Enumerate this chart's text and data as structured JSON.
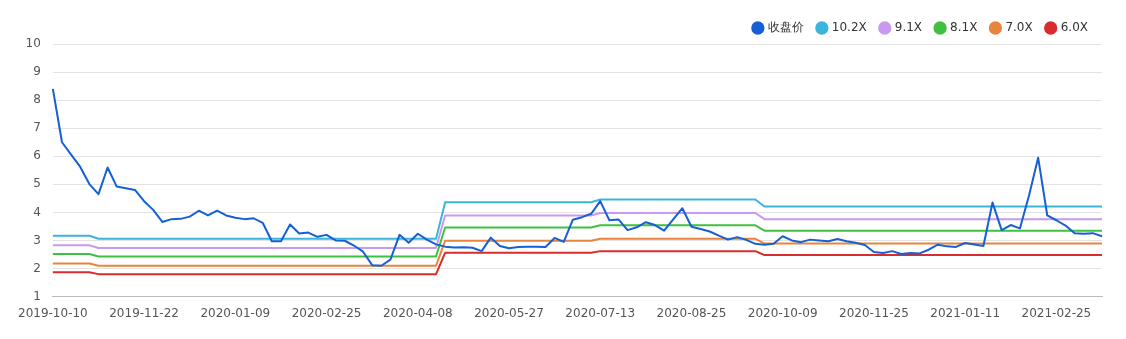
{
  "chart_data": {
    "type": "line",
    "legend": "top right",
    "grid": "y",
    "marker": "none",
    "line_style": "solid",
    "ylim": [
      1,
      10
    ],
    "yticks": [
      1,
      2,
      3,
      4,
      5,
      6,
      7,
      8,
      9,
      10
    ],
    "categories": [
      "2019-10-10",
      null,
      null,
      null,
      null,
      null,
      null,
      null,
      null,
      null,
      "2019-11-22",
      null,
      null,
      null,
      null,
      null,
      null,
      null,
      null,
      null,
      "2020-01-09",
      null,
      null,
      null,
      null,
      null,
      null,
      null,
      null,
      null,
      "2020-02-25",
      null,
      null,
      null,
      null,
      null,
      null,
      null,
      null,
      null,
      "2020-04-08",
      null,
      null,
      null,
      null,
      null,
      null,
      null,
      null,
      null,
      "2020-05-27",
      null,
      null,
      null,
      null,
      null,
      null,
      null,
      null,
      null,
      "2020-07-13",
      null,
      null,
      null,
      null,
      null,
      null,
      null,
      null,
      null,
      "2020-08-25",
      null,
      null,
      null,
      null,
      null,
      null,
      null,
      null,
      null,
      "2020-10-09",
      null,
      null,
      null,
      null,
      null,
      null,
      null,
      null,
      null,
      "2020-11-25",
      null,
      null,
      null,
      null,
      null,
      null,
      null,
      null,
      null,
      "2021-01-11",
      null,
      null,
      null,
      null,
      null,
      null,
      null,
      null,
      null,
      "2021-02-25",
      null,
      null,
      null,
      null,
      null
    ],
    "series": [
      {
        "name": "收盘价",
        "color": "#1560d4",
        "values": [
          8.4,
          6.5,
          6.06,
          5.62,
          5.01,
          4.65,
          5.6,
          4.92,
          4.86,
          4.8,
          4.4,
          4.09,
          3.66,
          3.76,
          3.77,
          3.85,
          4.06,
          3.89,
          4.06,
          3.89,
          3.81,
          3.76,
          3.79,
          3.63,
          2.97,
          2.97,
          3.57,
          3.25,
          3.28,
          3.13,
          3.2,
          3.0,
          2.99,
          2.82,
          2.6,
          2.12,
          2.1,
          2.32,
          3.2,
          2.92,
          3.24,
          3.03,
          2.86,
          2.78,
          2.75,
          2.76,
          2.74,
          2.62,
          3.1,
          2.8,
          2.72,
          2.77,
          2.78,
          2.78,
          2.77,
          3.09,
          2.95,
          3.74,
          3.83,
          3.95,
          4.4,
          3.72,
          3.75,
          3.37,
          3.47,
          3.65,
          3.55,
          3.35,
          3.75,
          4.15,
          3.49,
          3.41,
          3.32,
          3.17,
          3.03,
          3.12,
          3.02,
          2.88,
          2.85,
          2.88,
          3.15,
          3.0,
          2.94,
          3.03,
          3.0,
          2.97,
          3.05,
          2.97,
          2.92,
          2.84,
          2.59,
          2.55,
          2.62,
          2.52,
          2.55,
          2.54,
          2.67,
          2.85,
          2.79,
          2.77,
          2.91,
          2.86,
          2.8,
          4.35,
          3.37,
          3.55,
          3.43,
          4.6,
          5.95,
          3.89,
          3.72,
          3.53,
          3.26,
          3.24,
          3.26,
          3.15
        ]
      },
      {
        "name": "10.2X",
        "color": "#3bb5dc",
        "values": [
          3.17,
          3.17,
          3.17,
          3.17,
          3.17,
          3.06,
          3.06,
          3.06,
          3.06,
          3.06,
          3.06,
          3.06,
          3.06,
          3.06,
          3.06,
          3.06,
          3.06,
          3.06,
          3.06,
          3.06,
          3.06,
          3.06,
          3.06,
          3.06,
          3.06,
          3.06,
          3.06,
          3.06,
          3.06,
          3.06,
          3.06,
          3.06,
          3.06,
          3.06,
          3.06,
          3.06,
          3.06,
          3.06,
          3.06,
          3.06,
          3.06,
          3.06,
          3.06,
          4.36,
          4.36,
          4.36,
          4.36,
          4.36,
          4.36,
          4.36,
          4.36,
          4.36,
          4.36,
          4.36,
          4.36,
          4.36,
          4.36,
          4.36,
          4.36,
          4.36,
          4.46,
          4.46,
          4.46,
          4.46,
          4.46,
          4.46,
          4.46,
          4.46,
          4.46,
          4.46,
          4.46,
          4.46,
          4.46,
          4.46,
          4.46,
          4.46,
          4.46,
          4.46,
          4.21,
          4.21,
          4.21,
          4.21,
          4.21,
          4.21,
          4.21,
          4.21,
          4.21,
          4.21,
          4.21,
          4.21,
          4.21,
          4.21,
          4.21,
          4.21,
          4.21,
          4.21,
          4.21,
          4.21,
          4.21,
          4.21,
          4.21,
          4.21,
          4.21,
          4.21,
          4.21,
          4.21,
          4.21,
          4.21,
          4.21,
          4.21,
          4.21,
          4.21,
          4.21,
          4.21,
          4.21,
          4.21
        ]
      },
      {
        "name": "9.1X",
        "color": "#c79af0",
        "values": [
          2.83,
          2.83,
          2.83,
          2.83,
          2.83,
          2.73,
          2.73,
          2.73,
          2.73,
          2.73,
          2.73,
          2.73,
          2.73,
          2.73,
          2.73,
          2.73,
          2.73,
          2.73,
          2.73,
          2.73,
          2.73,
          2.73,
          2.73,
          2.73,
          2.73,
          2.73,
          2.73,
          2.73,
          2.73,
          2.73,
          2.73,
          2.73,
          2.73,
          2.73,
          2.73,
          2.73,
          2.73,
          2.73,
          2.73,
          2.73,
          2.73,
          2.73,
          2.73,
          3.89,
          3.89,
          3.89,
          3.89,
          3.89,
          3.89,
          3.89,
          3.89,
          3.89,
          3.89,
          3.89,
          3.89,
          3.89,
          3.89,
          3.89,
          3.89,
          3.89,
          3.98,
          3.98,
          3.98,
          3.98,
          3.98,
          3.98,
          3.98,
          3.98,
          3.98,
          3.98,
          3.98,
          3.98,
          3.98,
          3.98,
          3.98,
          3.98,
          3.98,
          3.98,
          3.76,
          3.76,
          3.76,
          3.76,
          3.76,
          3.76,
          3.76,
          3.76,
          3.76,
          3.76,
          3.76,
          3.76,
          3.76,
          3.76,
          3.76,
          3.76,
          3.76,
          3.76,
          3.76,
          3.76,
          3.76,
          3.76,
          3.76,
          3.76,
          3.76,
          3.76,
          3.76,
          3.76,
          3.76,
          3.76,
          3.76,
          3.76,
          3.76,
          3.76,
          3.76,
          3.76,
          3.76,
          3.76
        ]
      },
      {
        "name": "8.1X",
        "color": "#40c040",
        "values": [
          2.52,
          2.52,
          2.52,
          2.52,
          2.52,
          2.43,
          2.43,
          2.43,
          2.43,
          2.43,
          2.43,
          2.43,
          2.43,
          2.43,
          2.43,
          2.43,
          2.43,
          2.43,
          2.43,
          2.43,
          2.43,
          2.43,
          2.43,
          2.43,
          2.43,
          2.43,
          2.43,
          2.43,
          2.43,
          2.43,
          2.43,
          2.43,
          2.43,
          2.43,
          2.43,
          2.43,
          2.43,
          2.43,
          2.43,
          2.43,
          2.43,
          2.43,
          2.43,
          3.46,
          3.46,
          3.46,
          3.46,
          3.46,
          3.46,
          3.46,
          3.46,
          3.46,
          3.46,
          3.46,
          3.46,
          3.46,
          3.46,
          3.46,
          3.46,
          3.46,
          3.54,
          3.54,
          3.54,
          3.54,
          3.54,
          3.54,
          3.54,
          3.54,
          3.54,
          3.54,
          3.54,
          3.54,
          3.54,
          3.54,
          3.54,
          3.54,
          3.54,
          3.54,
          3.35,
          3.35,
          3.35,
          3.35,
          3.35,
          3.35,
          3.35,
          3.35,
          3.35,
          3.35,
          3.35,
          3.35,
          3.35,
          3.35,
          3.35,
          3.35,
          3.35,
          3.35,
          3.35,
          3.35,
          3.35,
          3.35,
          3.35,
          3.35,
          3.35,
          3.35,
          3.35,
          3.35,
          3.35,
          3.35,
          3.35,
          3.35,
          3.35,
          3.35,
          3.35,
          3.35,
          3.35,
          3.35
        ]
      },
      {
        "name": "7.0X",
        "color": "#e8843c",
        "values": [
          2.18,
          2.18,
          2.18,
          2.18,
          2.18,
          2.1,
          2.1,
          2.1,
          2.1,
          2.1,
          2.1,
          2.1,
          2.1,
          2.1,
          2.1,
          2.1,
          2.1,
          2.1,
          2.1,
          2.1,
          2.1,
          2.1,
          2.1,
          2.1,
          2.1,
          2.1,
          2.1,
          2.1,
          2.1,
          2.1,
          2.1,
          2.1,
          2.1,
          2.1,
          2.1,
          2.1,
          2.1,
          2.1,
          2.1,
          2.1,
          2.1,
          2.1,
          2.1,
          2.99,
          2.99,
          2.99,
          2.99,
          2.99,
          2.99,
          2.99,
          2.99,
          2.99,
          2.99,
          2.99,
          2.99,
          2.99,
          2.99,
          2.99,
          2.99,
          2.99,
          3.06,
          3.06,
          3.06,
          3.06,
          3.06,
          3.06,
          3.06,
          3.06,
          3.06,
          3.06,
          3.06,
          3.06,
          3.06,
          3.06,
          3.06,
          3.06,
          3.06,
          3.06,
          2.89,
          2.89,
          2.89,
          2.89,
          2.89,
          2.89,
          2.89,
          2.89,
          2.89,
          2.89,
          2.89,
          2.89,
          2.89,
          2.89,
          2.89,
          2.89,
          2.89,
          2.89,
          2.89,
          2.89,
          2.89,
          2.89,
          2.89,
          2.89,
          2.89,
          2.89,
          2.89,
          2.89,
          2.89,
          2.89,
          2.89,
          2.89,
          2.89,
          2.89,
          2.89,
          2.89,
          2.89,
          2.89
        ]
      },
      {
        "name": "6.0X",
        "color": "#d92c2c",
        "values": [
          1.87,
          1.87,
          1.87,
          1.87,
          1.87,
          1.8,
          1.8,
          1.8,
          1.8,
          1.8,
          1.8,
          1.8,
          1.8,
          1.8,
          1.8,
          1.8,
          1.8,
          1.8,
          1.8,
          1.8,
          1.8,
          1.8,
          1.8,
          1.8,
          1.8,
          1.8,
          1.8,
          1.8,
          1.8,
          1.8,
          1.8,
          1.8,
          1.8,
          1.8,
          1.8,
          1.8,
          1.8,
          1.8,
          1.8,
          1.8,
          1.8,
          1.8,
          1.8,
          2.56,
          2.56,
          2.56,
          2.56,
          2.56,
          2.56,
          2.56,
          2.56,
          2.56,
          2.56,
          2.56,
          2.56,
          2.56,
          2.56,
          2.56,
          2.56,
          2.56,
          2.62,
          2.62,
          2.62,
          2.62,
          2.62,
          2.62,
          2.62,
          2.62,
          2.62,
          2.62,
          2.62,
          2.62,
          2.62,
          2.62,
          2.62,
          2.62,
          2.62,
          2.62,
          2.48,
          2.48,
          2.48,
          2.48,
          2.48,
          2.48,
          2.48,
          2.48,
          2.48,
          2.48,
          2.48,
          2.48,
          2.48,
          2.48,
          2.48,
          2.48,
          2.48,
          2.48,
          2.48,
          2.48,
          2.48,
          2.48,
          2.48,
          2.48,
          2.48,
          2.48,
          2.48,
          2.48,
          2.48,
          2.48,
          2.48,
          2.48,
          2.48,
          2.48,
          2.48,
          2.48,
          2.48,
          2.48
        ]
      }
    ]
  }
}
